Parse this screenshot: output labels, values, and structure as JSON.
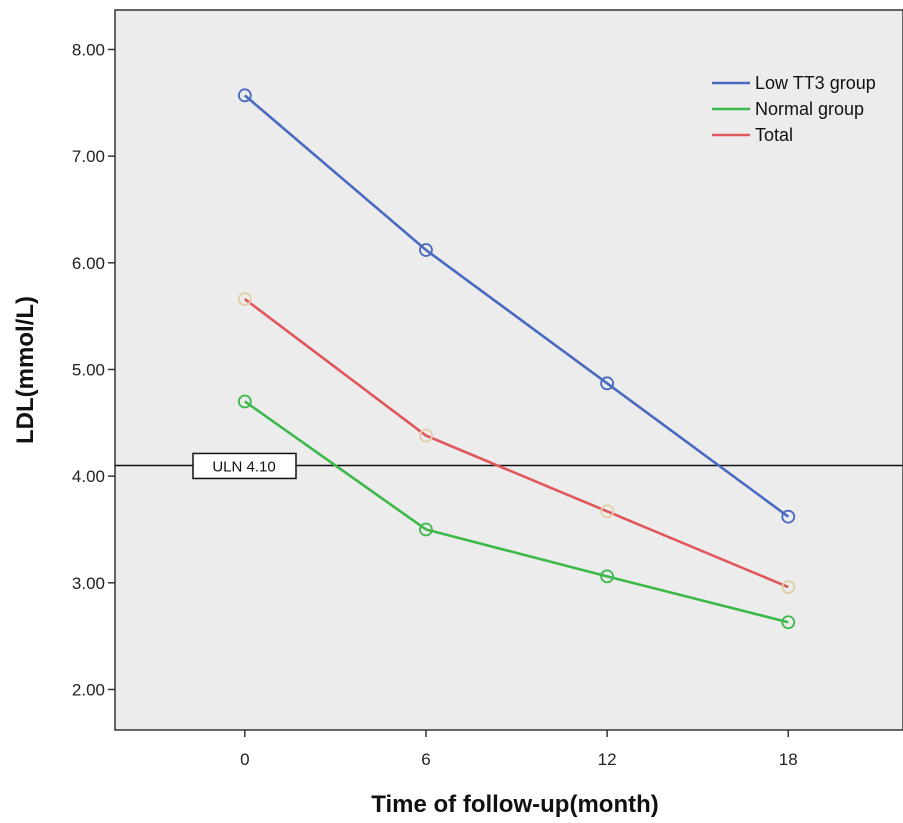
{
  "chart_data": {
    "type": "line",
    "title": "",
    "xlabel": "Time of follow-up(month)",
    "ylabel": "LDL(mmol/L)",
    "x": [
      0,
      6,
      12,
      18
    ],
    "x_tick_labels": [
      "0",
      "6",
      "12",
      "18"
    ],
    "xlim": [
      -4.3,
      21.8
    ],
    "ylim": [
      1.62,
      8.37
    ],
    "y_ticks": [
      2,
      3,
      4,
      5,
      6,
      7,
      8
    ],
    "y_tick_labels": [
      "2.00",
      "3.00",
      "4.00",
      "5.00",
      "6.00",
      "7.00",
      "8.00"
    ],
    "legend_position": "top-right",
    "series": [
      {
        "name": "Low TT3 group",
        "color": "#4a69c0",
        "marker_color": "#4a69c0",
        "values": [
          7.57,
          6.12,
          4.87,
          3.62
        ]
      },
      {
        "name": "Normal group",
        "color": "#3cb94a",
        "marker_color": "#3cb94a",
        "values": [
          4.7,
          3.5,
          3.06,
          2.63
        ]
      },
      {
        "name": "Total",
        "color": "#e0575b",
        "marker_color": "#e2cfa8",
        "values": [
          5.66,
          4.38,
          3.67,
          2.96
        ]
      }
    ],
    "reference_line": {
      "label": "ULN 4.10",
      "value": 4.1,
      "color": "#111111"
    },
    "background_color": "#ececec"
  }
}
